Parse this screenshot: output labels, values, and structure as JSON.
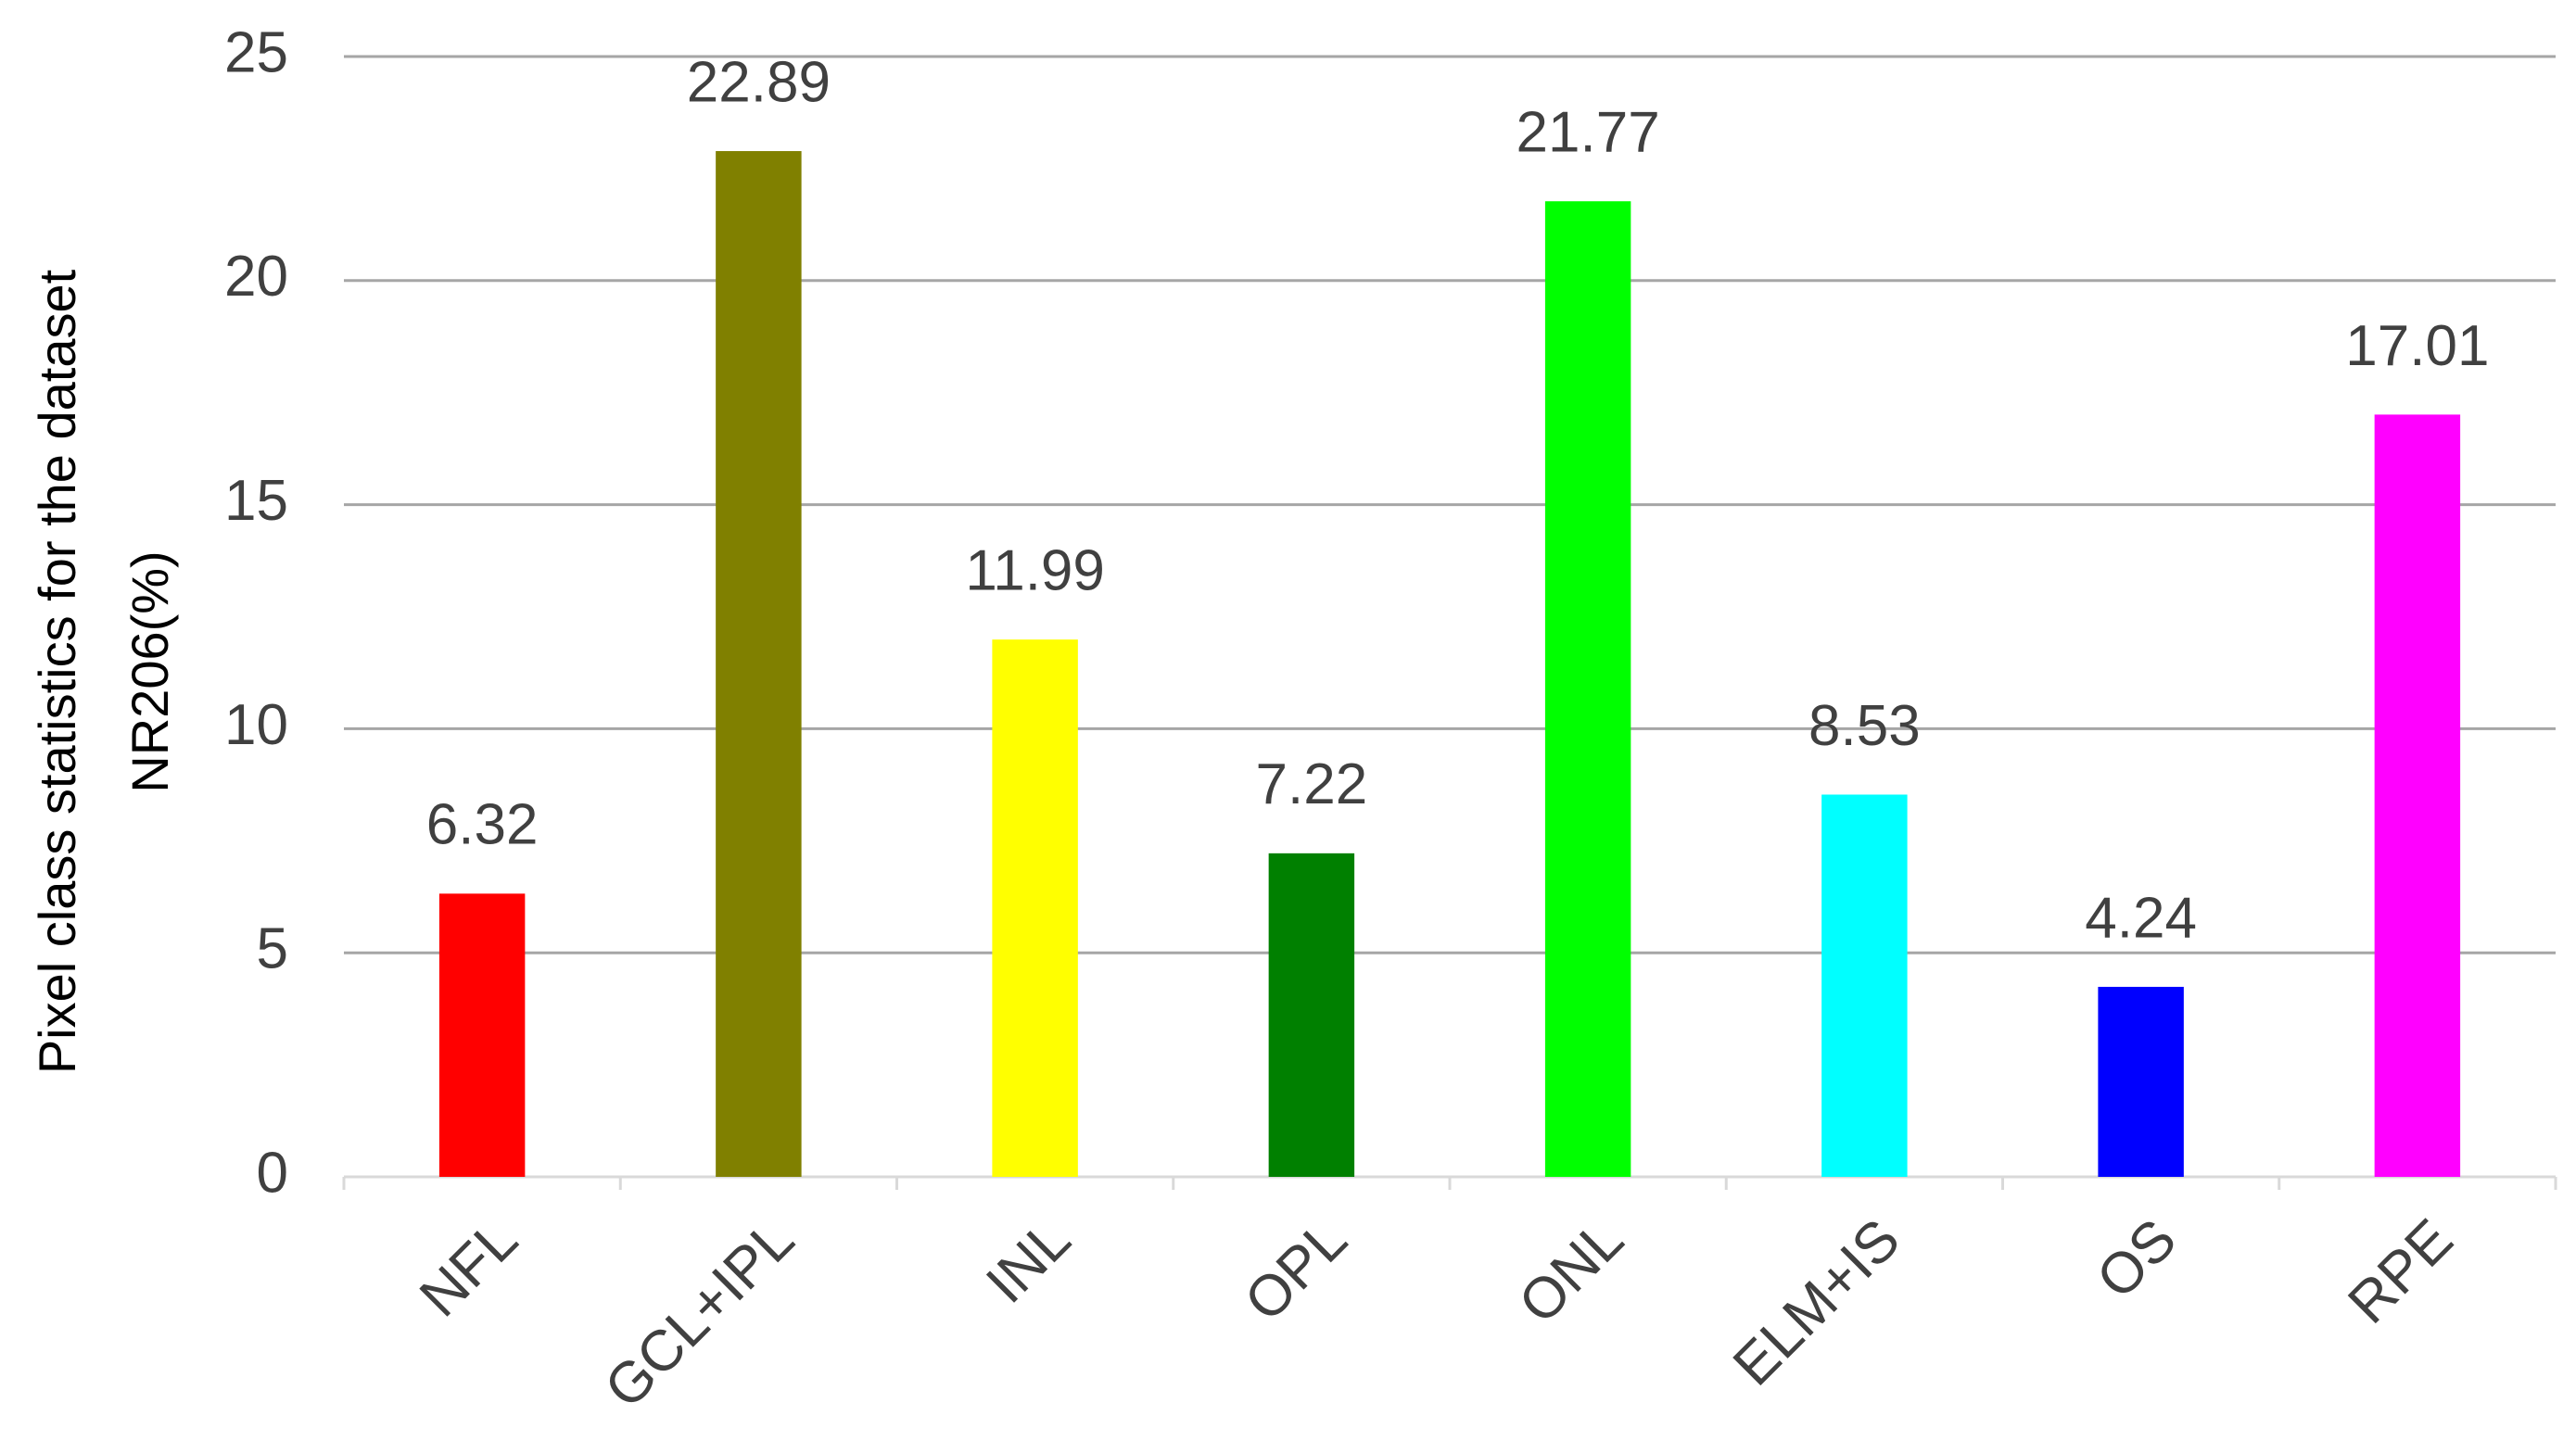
{
  "chart_data": {
    "type": "bar",
    "y_label": [
      "Pixel class statistics for the dataset",
      "NR206(%)"
    ],
    "categories": [
      "NFL",
      "GCL+IPL",
      "INL",
      "OPL",
      "ONL",
      "ELM+IS",
      "OS",
      "RPE"
    ],
    "values": [
      6.32,
      22.89,
      11.99,
      7.22,
      21.77,
      8.53,
      4.24,
      17.01
    ],
    "colors": [
      "#ff0000",
      "#808000",
      "#ffff00",
      "#008000",
      "#00ff00",
      "#00ffff",
      "#0000ff",
      "#ff00ff"
    ],
    "ylim": [
      0,
      25
    ],
    "yticks": [
      0,
      5,
      10,
      15,
      20,
      25
    ],
    "grid": true
  }
}
